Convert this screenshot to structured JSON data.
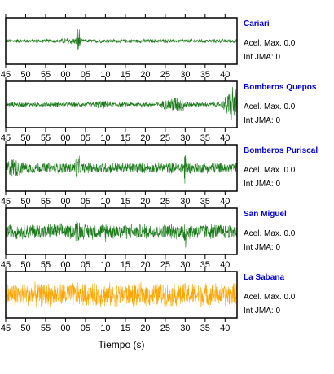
{
  "chart_data": {
    "type": "line",
    "xlabel": "Tiempo (s)",
    "tick_labels": [
      "45",
      "50",
      "55",
      "00",
      "05",
      "10",
      "15",
      "20",
      "25",
      "30",
      "35",
      "40"
    ],
    "stations": [
      {
        "name": "Cariari",
        "acel_text": "Acel. Max. 0.0",
        "int_text": "Int JMA: 0",
        "color": "#1a7a1a",
        "base_amp": 0.1,
        "bursts": [
          {
            "at": 3.2,
            "amp": 1.0,
            "width": 0.35
          },
          {
            "at": 1.0,
            "amp": 0.18,
            "width": 2.5
          }
        ]
      },
      {
        "name": "Bomberos Quepos",
        "acel_text": "Acel. Max. 0.0",
        "int_text": "Int JMA: 0",
        "color": "#1a7a1a",
        "base_amp": 0.12,
        "bursts": [
          {
            "at": 9.0,
            "amp": 0.22,
            "width": 2.0
          },
          {
            "at": 27.5,
            "amp": 0.45,
            "width": 2.5
          },
          {
            "at": 42.0,
            "amp": 1.0,
            "width": 1.5
          }
        ]
      },
      {
        "name": "Bomberos Puriscal",
        "acel_text": "Acel. Max. 0.0",
        "int_text": "Int JMA: 0",
        "color": "#1a7a1a",
        "base_amp": 0.28,
        "bursts": [
          {
            "at": 3.0,
            "amp": 0.75,
            "width": 0.6
          },
          {
            "at": 30.0,
            "amp": 1.0,
            "width": 0.6
          },
          {
            "at": -13.0,
            "amp": 0.55,
            "width": 2.0
          }
        ]
      },
      {
        "name": "San Miguel",
        "acel_text": "Acel. Max. 0.0",
        "int_text": "Int JMA: 0",
        "color": "#1a7a1a",
        "base_amp": 0.4,
        "bursts": [
          {
            "at": 30.0,
            "amp": 1.0,
            "width": 0.5
          },
          {
            "at": 3.0,
            "amp": 0.75,
            "width": 0.8
          },
          {
            "at": 10.0,
            "amp": 0.55,
            "width": 1.0
          }
        ]
      },
      {
        "name": "La Sabana",
        "acel_text": "Acel. Max. 0.0",
        "int_text": "Int JMA: 0",
        "color": "#ffa500",
        "base_amp": 0.62,
        "bursts": []
      }
    ],
    "x_range": [
      -15,
      43
    ],
    "grid": false
  }
}
